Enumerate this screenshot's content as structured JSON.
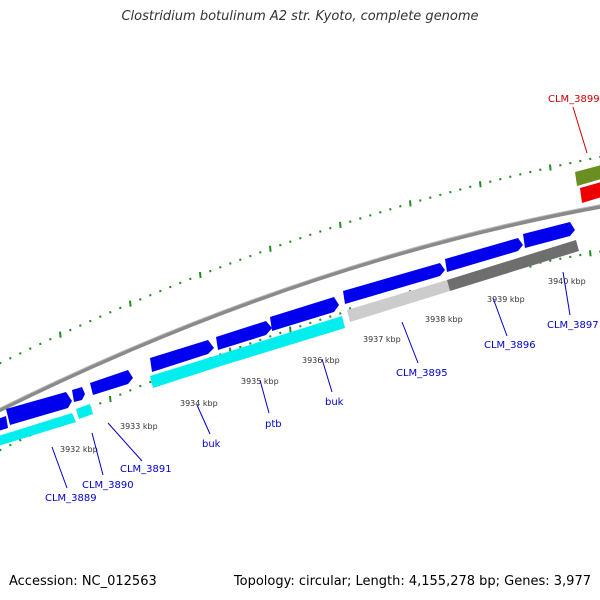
{
  "title": "Clostridium botulinum A2 str. Kyoto, complete genome",
  "footer": {
    "accession": "Accession: NC_012563",
    "summary": "Topology: circular; Length: 4,155,278 bp; Genes: 3,977"
  },
  "colors": {
    "forward_gene": "#0000ee",
    "reverse_gene": "#00eeee",
    "highlight_gene": "#ee0000",
    "rna_gene": "#6b8e23",
    "backbone": "#888888",
    "tick": "#228b22",
    "label_forward": "#0000cc",
    "label_highlight": "#cc0000"
  },
  "ticks": {
    "labels": [
      "3932 kbp",
      "3933 kbp",
      "3934 kbp",
      "3935 kbp",
      "3936 kbp",
      "3937 kbp",
      "3938 kbp",
      "3939 kbp",
      "3940 kbp"
    ]
  },
  "gene_labels": [
    {
      "id": "CLM_3889",
      "text": "CLM_3889",
      "color": "label_forward"
    },
    {
      "id": "CLM_3890",
      "text": "CLM_3890",
      "color": "label_forward"
    },
    {
      "id": "CLM_3891",
      "text": "CLM_3891",
      "color": "label_forward"
    },
    {
      "id": "buk1",
      "text": "buk",
      "color": "label_forward"
    },
    {
      "id": "ptb",
      "text": "ptb",
      "color": "label_forward"
    },
    {
      "id": "buk2",
      "text": "buk",
      "color": "label_forward"
    },
    {
      "id": "CLM_3895",
      "text": "CLM_3895",
      "color": "label_forward"
    },
    {
      "id": "CLM_3896",
      "text": "CLM_3896",
      "color": "label_forward"
    },
    {
      "id": "CLM_3897",
      "text": "CLM_3897",
      "color": "label_forward"
    },
    {
      "id": "CLM_3899",
      "text": "CLM_3899",
      "color": "label_highlight"
    }
  ]
}
